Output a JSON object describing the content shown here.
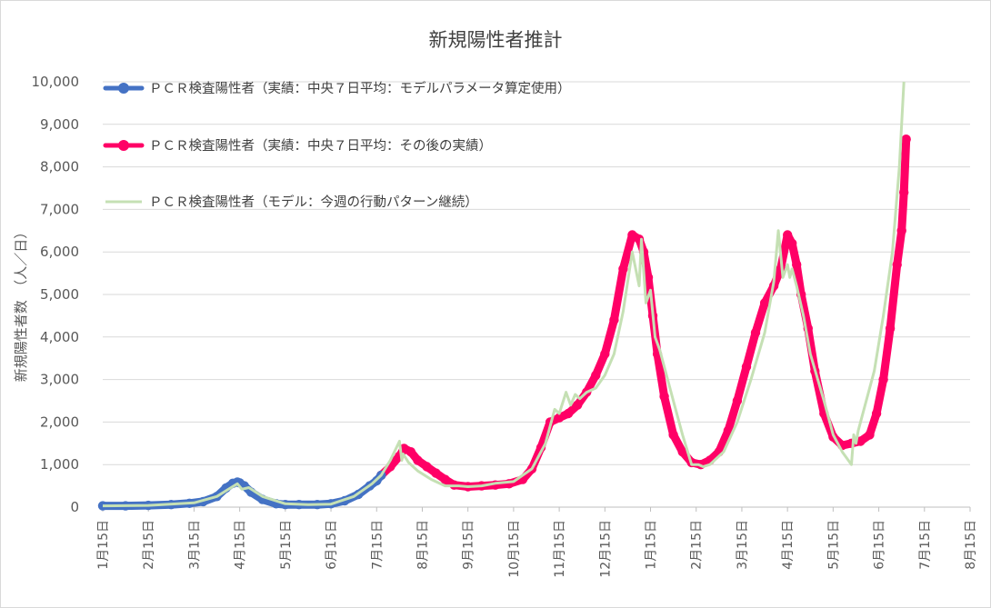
{
  "chart_data": {
    "type": "line",
    "title": "新規陽性者推計",
    "ylabel": "新規陽性者数　（人／日）",
    "xlabel": "",
    "ylim": [
      0,
      10000
    ],
    "yticks": [
      0,
      1000,
      2000,
      3000,
      4000,
      5000,
      6000,
      7000,
      8000,
      9000,
      10000
    ],
    "ytick_labels": [
      "0",
      "1,000",
      "2,000",
      "3,000",
      "4,000",
      "5,000",
      "6,000",
      "7,000",
      "8,000",
      "9,000",
      "10,000"
    ],
    "xtick_labels": [
      "1月15日",
      "2月15日",
      "3月15日",
      "4月15日",
      "5月15日",
      "6月15日",
      "7月15日",
      "8月15日",
      "9月15日",
      "10月15日",
      "11月15日",
      "12月15日",
      "1月15日",
      "2月15日",
      "3月15日",
      "4月15日",
      "5月15日",
      "6月15日",
      "7月15日",
      "8月15日"
    ],
    "x_unit": "month offset from 1月15日",
    "grid": true,
    "legend_position": "top-left",
    "series": [
      {
        "name": "ＰＣＲ検査陽性者（実績：中央７日平均：モデルパラメータ算定使用）",
        "color": "#4472c4",
        "style": "line-markers",
        "x": [
          0,
          0.5,
          1,
          1.5,
          1.9,
          2.2,
          2.5,
          2.7,
          2.85,
          2.95,
          3.0,
          3.1,
          3.25,
          3.5,
          3.8,
          4.0,
          4.3,
          4.7,
          5.0,
          5.3,
          5.6,
          5.85,
          6.0,
          6.1
        ],
        "y": [
          30,
          30,
          40,
          60,
          90,
          130,
          250,
          450,
          560,
          590,
          570,
          500,
          350,
          180,
          80,
          60,
          60,
          60,
          80,
          150,
          300,
          500,
          620,
          750
        ]
      },
      {
        "name": "ＰＣＲ検査陽性者（実績：中央７日平均：その後の実績）",
        "color": "#ff0066",
        "style": "line-markers",
        "x": [
          6.1,
          6.3,
          6.5,
          6.6,
          6.75,
          6.9,
          7.1,
          7.3,
          7.5,
          7.7,
          8.0,
          8.3,
          8.6,
          8.9,
          9.2,
          9.4,
          9.6,
          9.8,
          10.0,
          10.2,
          10.4,
          10.6,
          10.8,
          11.0,
          11.2,
          11.4,
          11.6,
          11.75,
          11.85,
          11.95,
          12.05,
          12.15,
          12.3,
          12.5,
          12.7,
          12.9,
          13.1,
          13.3,
          13.5,
          13.7,
          13.9,
          14.1,
          14.3,
          14.5,
          14.7,
          14.85,
          15.0,
          15.1,
          15.2,
          15.3,
          15.45,
          15.6,
          15.8,
          16.0,
          16.2,
          16.4,
          16.6,
          16.8,
          16.95,
          17.1,
          17.25,
          17.4,
          17.5,
          17.55,
          17.6
        ],
        "y": [
          750,
          950,
          1200,
          1380,
          1300,
          1100,
          950,
          800,
          650,
          520,
          480,
          500,
          520,
          550,
          650,
          900,
          1400,
          2000,
          2100,
          2200,
          2400,
          2700,
          3100,
          3600,
          4400,
          5600,
          6400,
          6300,
          6000,
          5400,
          4500,
          3600,
          2600,
          1700,
          1300,
          1050,
          1000,
          1100,
          1300,
          1800,
          2500,
          3300,
          4100,
          4800,
          5200,
          5600,
          6400,
          6200,
          5700,
          5000,
          4200,
          3200,
          2200,
          1650,
          1450,
          1500,
          1550,
          1700,
          2200,
          3000,
          4200,
          5700,
          6500,
          7400,
          8650
        ]
      },
      {
        "name": "ＰＣＲ検査陽性者（モデル：今週の行動パターン継続）",
        "color": "#c5e0b4",
        "style": "line",
        "x": [
          0,
          1,
          2,
          2.5,
          2.8,
          2.95,
          3.05,
          3.2,
          3.5,
          4.0,
          4.5,
          5.0,
          5.5,
          5.9,
          6.1,
          6.3,
          6.5,
          6.55,
          6.58,
          6.7,
          6.9,
          7.2,
          7.5,
          7.8,
          8.0,
          8.3,
          8.6,
          9.0,
          9.4,
          9.7,
          9.9,
          10.0,
          10.15,
          10.25,
          10.35,
          10.45,
          10.6,
          10.8,
          11.0,
          11.2,
          11.4,
          11.6,
          11.75,
          11.8,
          11.9,
          12.0,
          12.1,
          12.2,
          12.5,
          12.7,
          12.9,
          13.05,
          13.15,
          13.3,
          13.6,
          13.9,
          14.2,
          14.5,
          14.7,
          14.8,
          14.9,
          15.0,
          15.05,
          15.1,
          15.2,
          15.35,
          15.5,
          15.8,
          16.0,
          16.2,
          16.4,
          16.45,
          16.5,
          16.55,
          16.7,
          16.9,
          17.1,
          17.3,
          17.45,
          17.55
        ],
        "y": [
          30,
          40,
          100,
          250,
          450,
          550,
          420,
          460,
          250,
          80,
          60,
          70,
          250,
          550,
          750,
          1100,
          1550,
          1100,
          1250,
          1050,
          850,
          650,
          500,
          500,
          480,
          500,
          560,
          600,
          900,
          1500,
          2300,
          2200,
          2700,
          2400,
          2650,
          2550,
          2700,
          2800,
          3100,
          3600,
          4600,
          6000,
          5200,
          6300,
          4800,
          5100,
          4000,
          3700,
          2500,
          1700,
          1000,
          1000,
          950,
          1000,
          1300,
          2000,
          3000,
          4100,
          5300,
          6500,
          5400,
          5700,
          5400,
          5600,
          5200,
          4500,
          3600,
          2500,
          1700,
          1300,
          1000,
          1700,
          1500,
          1800,
          2400,
          3200,
          4500,
          6000,
          8000,
          10000
        ]
      }
    ]
  }
}
